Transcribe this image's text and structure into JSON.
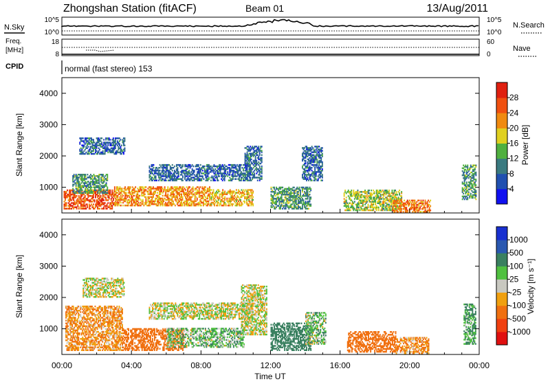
{
  "header": {
    "station": "Zhongshan Station (fitACF)",
    "beam": "Beam 01",
    "date": "13/Aug/2011"
  },
  "strips": {
    "nsky_label": "N.Sky",
    "nsky_ticks": [
      "10^5",
      "10^0"
    ],
    "nsearch_label": "N.Search",
    "nsearch_ticks": [
      "10^5",
      "10^0"
    ],
    "freq_label_1": "Freq.",
    "freq_label_2": "[MHz]",
    "freq_ticks": [
      "18",
      "8"
    ],
    "nave_label": "Nave",
    "nave_ticks": [
      "60",
      "0"
    ],
    "cpid_label": "CPID",
    "cpid_text": "normal (fast stereo) 153"
  },
  "axes": {
    "ylabel": "Slant Range [km]",
    "xlabel": "Time UT",
    "yticks": [
      "1000",
      "2000",
      "3000",
      "4000"
    ],
    "xticks": [
      "00:00",
      "04:00",
      "08:00",
      "12:00",
      "16:00",
      "20:00",
      "00:00"
    ]
  },
  "power_scale": {
    "label": "Power [dB]",
    "ticks": [
      "4",
      "8",
      "12",
      "16",
      "20",
      "24",
      "28"
    ],
    "colors": [
      "#1010f0",
      "#2050b0",
      "#3a7a80",
      "#50b040",
      "#e0d020",
      "#f08a10",
      "#f05010",
      "#e02010"
    ]
  },
  "velocity_scale": {
    "label": "Velocity [m s⁻¹]",
    "ticks": [
      "1000",
      "500",
      "100",
      "25",
      "-25",
      "-100",
      "-500",
      "-1000"
    ],
    "colors": [
      "#1830d0",
      "#2a58b0",
      "#3a8060",
      "#50c040",
      "#c8c8c0",
      "#f0a010",
      "#f07010",
      "#f04010",
      "#e01010"
    ]
  },
  "chart_data": [
    {
      "type": "heatmap",
      "title": "",
      "xlabel": "Time UT",
      "ylabel": "Slant Range [km]",
      "xlim": [
        "00:00",
        "24:00"
      ],
      "ylim": [
        180,
        4500
      ],
      "colorbar": "Power [dB]",
      "regions": [
        {
          "t": [
            0.1,
            3.0
          ],
          "range": [
            300,
            900
          ],
          "value": 26
        },
        {
          "t": [
            0.6,
            2.6
          ],
          "range": [
            800,
            1400
          ],
          "value": 12
        },
        {
          "t": [
            1.0,
            3.6
          ],
          "range": [
            2050,
            2550
          ],
          "value": 8
        },
        {
          "t": [
            3.0,
            8.5
          ],
          "range": [
            400,
            1000
          ],
          "value": 22
        },
        {
          "t": [
            5.0,
            10.8
          ],
          "range": [
            1200,
            1700
          ],
          "value": 8
        },
        {
          "t": [
            8.5,
            11.0
          ],
          "range": [
            400,
            900
          ],
          "value": 20
        },
        {
          "t": [
            10.5,
            11.5
          ],
          "range": [
            1200,
            2300
          ],
          "value": 8
        },
        {
          "t": [
            12.0,
            14.3
          ],
          "range": [
            300,
            1000
          ],
          "value": 12
        },
        {
          "t": [
            13.8,
            15.0
          ],
          "range": [
            1200,
            2300
          ],
          "value": 8
        },
        {
          "t": [
            16.2,
            19.5
          ],
          "range": [
            250,
            900
          ],
          "value": 16
        },
        {
          "t": [
            19.0,
            21.2
          ],
          "range": [
            200,
            600
          ],
          "value": 24
        },
        {
          "t": [
            23.0,
            23.8
          ],
          "range": [
            600,
            1700
          ],
          "value": 12
        }
      ]
    },
    {
      "type": "heatmap",
      "title": "",
      "xlabel": "Time UT",
      "ylabel": "Slant Range [km]",
      "xlim": [
        "00:00",
        "24:00"
      ],
      "ylim": [
        180,
        4500
      ],
      "colorbar": "Velocity [m s⁻¹]",
      "regions": [
        {
          "t": [
            0.2,
            3.5
          ],
          "range": [
            300,
            1700
          ],
          "value": -100
        },
        {
          "t": [
            1.2,
            3.6
          ],
          "range": [
            2000,
            2600
          ],
          "value": 0
        },
        {
          "t": [
            3.5,
            7.0
          ],
          "range": [
            300,
            1000
          ],
          "value": -200
        },
        {
          "t": [
            5.0,
            11.0
          ],
          "range": [
            1300,
            1800
          ],
          "value": 0
        },
        {
          "t": [
            6.0,
            10.5
          ],
          "range": [
            400,
            1000
          ],
          "value": 60
        },
        {
          "t": [
            10.3,
            11.8
          ],
          "range": [
            800,
            2400
          ],
          "value": 0
        },
        {
          "t": [
            12.0,
            14.3
          ],
          "range": [
            300,
            1200
          ],
          "value": 200
        },
        {
          "t": [
            14.0,
            15.2
          ],
          "range": [
            500,
            1500
          ],
          "value": 50
        },
        {
          "t": [
            16.4,
            19.2
          ],
          "range": [
            250,
            900
          ],
          "value": -200
        },
        {
          "t": [
            19.2,
            21.1
          ],
          "range": [
            200,
            700
          ],
          "value": -100
        },
        {
          "t": [
            23.1,
            23.8
          ],
          "range": [
            500,
            1800
          ],
          "value": 100
        }
      ]
    }
  ]
}
